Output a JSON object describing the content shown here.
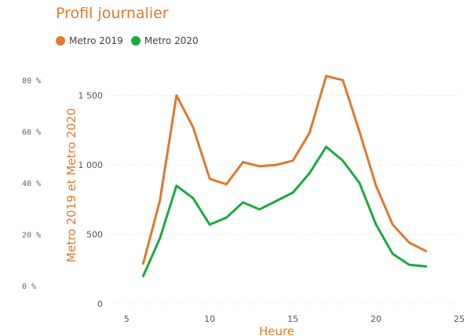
{
  "chart_data": {
    "type": "line",
    "title": "Profil journalier",
    "xlabel": "Heure",
    "ylabel": "Metro 2019 et Metro 2020",
    "x_ticks": [
      5,
      10,
      15,
      20,
      25
    ],
    "y_ticks": [
      0,
      500,
      1000,
      1500
    ],
    "y_tick_labels": [
      "0",
      "500",
      "1 000",
      "1 500"
    ],
    "y2_ticks": [
      "0 %",
      "20 %",
      "40 %",
      "60 %",
      "80 %"
    ],
    "xlim": [
      4,
      25
    ],
    "ylim": [
      0,
      1650
    ],
    "x": [
      6,
      7,
      8,
      9,
      10,
      11,
      12,
      13,
      14,
      15,
      16,
      17,
      18,
      19,
      20,
      21,
      22,
      23
    ],
    "series": [
      {
        "name": "Metro 2019",
        "color": "#e0782f",
        "values": [
          290,
          740,
          1500,
          1270,
          900,
          860,
          1020,
          990,
          1000,
          1030,
          1230,
          1640,
          1610,
          1240,
          850,
          570,
          440,
          380
        ]
      },
      {
        "name": "Metro 2020",
        "color": "#1aab3e",
        "values": [
          200,
          470,
          850,
          760,
          570,
          620,
          730,
          680,
          740,
          800,
          940,
          1130,
          1030,
          870,
          570,
          360,
          280,
          270
        ]
      }
    ],
    "grid": "horizontal-dashed",
    "legend_position": "top-left"
  }
}
